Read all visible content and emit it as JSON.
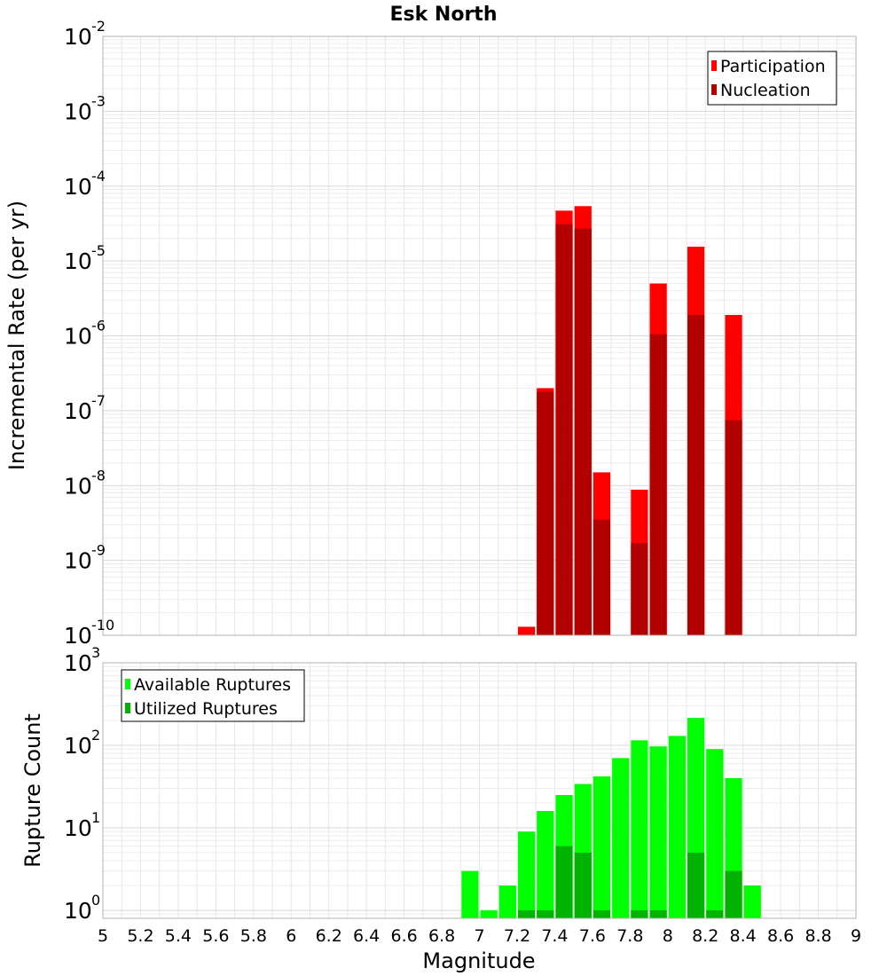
{
  "chart_data": [
    {
      "type": "bar",
      "title": "Esk North",
      "xlabel": "Magnitude",
      "ylabel": "Incremental Rate (per yr)",
      "yscale": "log",
      "xlim": [
        5,
        9
      ],
      "ylim": [
        1e-10,
        0.01
      ],
      "ytick_base": "10",
      "ytick_exponents": [
        "-10",
        "-9",
        "-8",
        "-7",
        "-6",
        "-5",
        "-4",
        "-3",
        "-2"
      ],
      "grid": true,
      "legend_position": "top-right",
      "x": [
        7.25,
        7.35,
        7.45,
        7.55,
        7.65,
        7.85,
        7.95,
        8.15,
        8.35
      ],
      "series": [
        {
          "name": "Participation",
          "color": "#ff0000",
          "values": [
            1.3e-10,
            2e-07,
            4.7e-05,
            5.4e-05,
            1.5e-08,
            8.8e-09,
            5e-06,
            1.55e-05,
            1.9e-06
          ]
        },
        {
          "name": "Nucleation",
          "color": "#b30000",
          "values": [
            null,
            1.8e-07,
            3.1e-05,
            2.7e-05,
            3.5e-09,
            1.7e-09,
            1.05e-06,
            1.9e-06,
            7.5e-08
          ]
        }
      ]
    },
    {
      "type": "bar",
      "xlabel": "Magnitude",
      "ylabel": "Rupture Count",
      "yscale": "log",
      "xlim": [
        5,
        9
      ],
      "ylim": [
        0.8,
        1000
      ],
      "ytick_base": "10",
      "ytick_exponents": [
        "0",
        "1",
        "2",
        "3"
      ],
      "xticks": [
        "5",
        "5.2",
        "5.4",
        "5.6",
        "5.8",
        "6",
        "6.2",
        "6.4",
        "6.6",
        "6.8",
        "7",
        "7.2",
        "7.4",
        "7.6",
        "7.8",
        "8",
        "8.2",
        "8.4",
        "8.6",
        "8.8",
        "9"
      ],
      "grid": true,
      "legend_position": "top-left",
      "x": [
        6.95,
        7.05,
        7.15,
        7.25,
        7.35,
        7.45,
        7.55,
        7.65,
        7.75,
        7.85,
        7.95,
        8.05,
        8.15,
        8.25,
        8.35,
        8.45
      ],
      "series": [
        {
          "name": "Available Ruptures",
          "color": "#00ff00",
          "values": [
            3,
            1,
            2,
            9,
            16,
            25,
            34,
            42,
            70,
            115,
            97,
            130,
            215,
            90,
            40,
            2
          ]
        },
        {
          "name": "Utilized Ruptures",
          "color": "#00b300",
          "values": [
            null,
            null,
            null,
            1,
            1,
            6,
            5,
            1,
            null,
            1,
            1,
            null,
            5,
            1,
            3,
            null
          ]
        }
      ]
    }
  ]
}
